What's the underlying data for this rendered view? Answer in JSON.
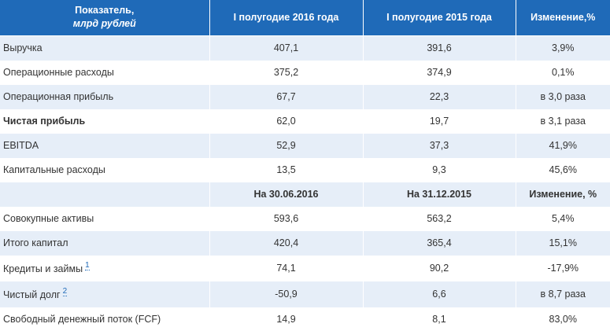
{
  "header": {
    "col0_line1": "Показатель,",
    "col0_line2": "млрд рублей",
    "col1": "I полугодие 2016 года",
    "col2": "I полугодие 2015 года",
    "col3": "Изменение,%"
  },
  "rows1": [
    {
      "label": "Выручка",
      "v1": "407,1",
      "v2": "391,6",
      "v3": "3,9%"
    },
    {
      "label": "Операционные расходы",
      "v1": "375,2",
      "v2": "374,9",
      "v3": "0,1%"
    },
    {
      "label": "Операционная прибыль",
      "v1": "67,7",
      "v2": "22,3",
      "v3": "в 3,0 раза"
    },
    {
      "label": "Чистая прибыль",
      "v1": "62,0",
      "v2": "19,7",
      "v3": "в 3,1 раза"
    },
    {
      "label": "EBITDA",
      "v1": "52,9",
      "v2": "37,3",
      "v3": "41,9%"
    },
    {
      "label": "Капитальные расходы",
      "v1": "13,5",
      "v2": "9,3",
      "v3": "45,6%"
    }
  ],
  "subheader": {
    "col1": "На 30.06.2016",
    "col2": "На 31.12.2015",
    "col3": "Изменение, %"
  },
  "rows2": [
    {
      "label": "Совокупные активы",
      "v1": "593,6",
      "v2": "563,2",
      "v3": "5,4%"
    },
    {
      "label": "Итого капитал",
      "v1": "420,4",
      "v2": "365,4",
      "v3": "15,1%"
    },
    {
      "label": "Кредиты и займы",
      "footnote": "1",
      "v1": "74,1",
      "v2": "90,2",
      "v3": "-17,9%"
    },
    {
      "label": "Чистый долг",
      "footnote": "2",
      "v1": "-50,9",
      "v2": "6,6",
      "v3": "в 8,7 раза"
    },
    {
      "label": "Свободный денежный поток (FCF)",
      "v1": "14,9",
      "v2": "8,1",
      "v3": "83,0%"
    }
  ]
}
